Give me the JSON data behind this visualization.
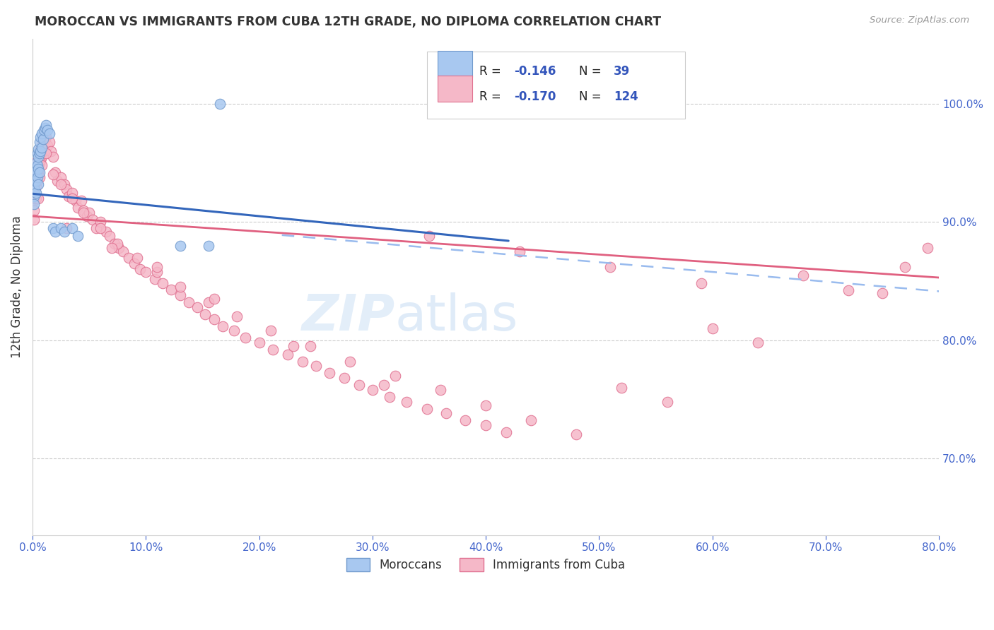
{
  "title": "MOROCCAN VS IMMIGRANTS FROM CUBA 12TH GRADE, NO DIPLOMA CORRELATION CHART",
  "source": "Source: ZipAtlas.com",
  "ylabel": "12th Grade, No Diploma",
  "x_min": 0.0,
  "x_max": 0.8,
  "y_min": 0.635,
  "y_max": 1.055,
  "x_tick_vals": [
    0.0,
    0.1,
    0.2,
    0.3,
    0.4,
    0.5,
    0.6,
    0.7,
    0.8
  ],
  "y_tick_vals": [
    0.7,
    0.8,
    0.9,
    1.0
  ],
  "blue_color": "#A8C8F0",
  "pink_color": "#F5B8C8",
  "blue_edge": "#7099CC",
  "pink_edge": "#E07090",
  "blue_line_color": "#3366BB",
  "pink_line_color": "#E06080",
  "dash_line_color": "#99BBEE",
  "legend_R_blue": "-0.146",
  "legend_N_blue": "39",
  "legend_R_pink": "-0.170",
  "legend_N_pink": "124",
  "legend_label_blue": "Moroccans",
  "legend_label_pink": "Immigrants from Cuba",
  "watermark_zip": "ZIP",
  "watermark_atlas": "atlas",
  "moroccan_x": [
    0.001,
    0.001,
    0.001,
    0.002,
    0.002,
    0.002,
    0.003,
    0.003,
    0.003,
    0.003,
    0.004,
    0.004,
    0.004,
    0.005,
    0.005,
    0.005,
    0.005,
    0.006,
    0.006,
    0.006,
    0.007,
    0.007,
    0.008,
    0.008,
    0.009,
    0.01,
    0.011,
    0.012,
    0.013,
    0.015,
    0.018,
    0.02,
    0.025,
    0.028,
    0.035,
    0.04,
    0.13,
    0.155,
    0.165
  ],
  "moroccan_y": [
    0.93,
    0.922,
    0.915,
    0.942,
    0.935,
    0.927,
    0.95,
    0.943,
    0.935,
    0.925,
    0.958,
    0.948,
    0.938,
    0.962,
    0.955,
    0.945,
    0.932,
    0.968,
    0.958,
    0.942,
    0.972,
    0.96,
    0.975,
    0.963,
    0.97,
    0.978,
    0.98,
    0.982,
    0.978,
    0.975,
    0.895,
    0.892,
    0.895,
    0.892,
    0.895,
    0.888,
    0.88,
    0.88,
    1.0
  ],
  "cuba_x": [
    0.001,
    0.001,
    0.001,
    0.002,
    0.002,
    0.003,
    0.003,
    0.003,
    0.004,
    0.004,
    0.005,
    0.005,
    0.006,
    0.006,
    0.006,
    0.007,
    0.007,
    0.008,
    0.008,
    0.009,
    0.01,
    0.01,
    0.011,
    0.012,
    0.013,
    0.015,
    0.016,
    0.018,
    0.02,
    0.022,
    0.025,
    0.028,
    0.03,
    0.032,
    0.035,
    0.038,
    0.04,
    0.043,
    0.045,
    0.048,
    0.05,
    0.053,
    0.056,
    0.06,
    0.065,
    0.068,
    0.072,
    0.076,
    0.08,
    0.085,
    0.09,
    0.095,
    0.1,
    0.108,
    0.115,
    0.122,
    0.13,
    0.138,
    0.145,
    0.152,
    0.16,
    0.168,
    0.178,
    0.188,
    0.2,
    0.212,
    0.225,
    0.238,
    0.25,
    0.262,
    0.275,
    0.288,
    0.3,
    0.315,
    0.33,
    0.348,
    0.365,
    0.382,
    0.4,
    0.418,
    0.002,
    0.004,
    0.006,
    0.008,
    0.012,
    0.018,
    0.025,
    0.035,
    0.045,
    0.06,
    0.075,
    0.092,
    0.11,
    0.13,
    0.155,
    0.18,
    0.21,
    0.245,
    0.28,
    0.32,
    0.36,
    0.4,
    0.44,
    0.48,
    0.52,
    0.56,
    0.6,
    0.64,
    0.68,
    0.72,
    0.75,
    0.77,
    0.79,
    0.35,
    0.43,
    0.51,
    0.59,
    0.005,
    0.03,
    0.07,
    0.11,
    0.16,
    0.23,
    0.31
  ],
  "cuba_y": [
    0.918,
    0.91,
    0.902,
    0.928,
    0.92,
    0.938,
    0.93,
    0.92,
    0.945,
    0.935,
    0.952,
    0.942,
    0.958,
    0.95,
    0.938,
    0.962,
    0.952,
    0.965,
    0.955,
    0.96,
    0.968,
    0.975,
    0.97,
    0.972,
    0.965,
    0.968,
    0.96,
    0.955,
    0.942,
    0.935,
    0.938,
    0.932,
    0.928,
    0.922,
    0.925,
    0.918,
    0.912,
    0.918,
    0.91,
    0.905,
    0.908,
    0.902,
    0.895,
    0.9,
    0.892,
    0.888,
    0.882,
    0.878,
    0.875,
    0.87,
    0.865,
    0.86,
    0.858,
    0.852,
    0.848,
    0.843,
    0.838,
    0.832,
    0.828,
    0.822,
    0.818,
    0.812,
    0.808,
    0.802,
    0.798,
    0.792,
    0.788,
    0.782,
    0.778,
    0.772,
    0.768,
    0.762,
    0.758,
    0.752,
    0.748,
    0.742,
    0.738,
    0.732,
    0.728,
    0.722,
    0.95,
    0.945,
    0.955,
    0.948,
    0.958,
    0.94,
    0.932,
    0.92,
    0.908,
    0.895,
    0.882,
    0.87,
    0.858,
    0.845,
    0.832,
    0.82,
    0.808,
    0.795,
    0.782,
    0.77,
    0.758,
    0.745,
    0.732,
    0.72,
    0.76,
    0.748,
    0.81,
    0.798,
    0.855,
    0.842,
    0.84,
    0.862,
    0.878,
    0.888,
    0.875,
    0.862,
    0.848,
    0.92,
    0.895,
    0.878,
    0.862,
    0.835,
    0.795,
    0.762
  ]
}
